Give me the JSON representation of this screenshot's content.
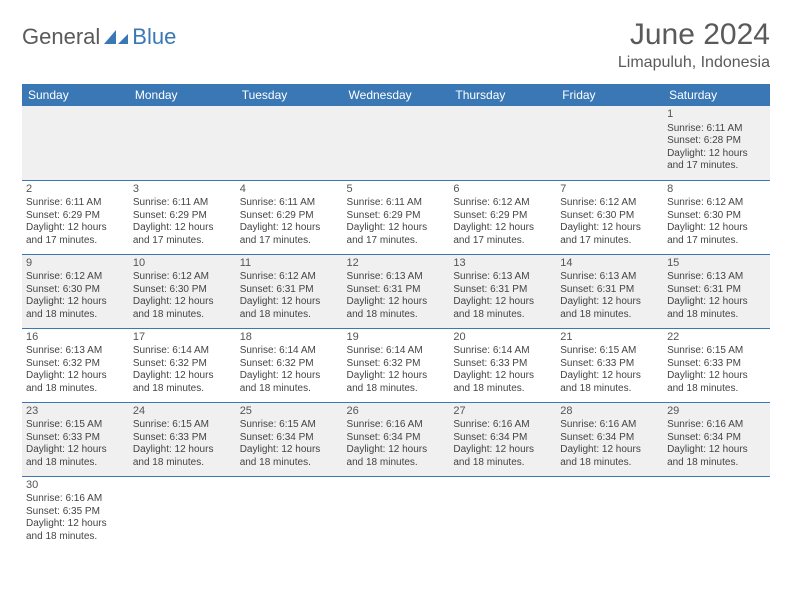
{
  "logo": {
    "word1": "General",
    "word2": "Blue",
    "icon_color": "#3a78b5"
  },
  "title": "June 2024",
  "subtitle": "Limapuluh, Indonesia",
  "colors": {
    "header_bg": "#3a78b5",
    "header_text": "#ffffff",
    "row_alt": "#f0f0f0",
    "border": "#3a78b5",
    "text": "#444444"
  },
  "day_headers": [
    "Sunday",
    "Monday",
    "Tuesday",
    "Wednesday",
    "Thursday",
    "Friday",
    "Saturday"
  ],
  "weeks": [
    [
      null,
      null,
      null,
      null,
      null,
      null,
      {
        "n": "1",
        "sr": "6:11 AM",
        "ss": "6:28 PM",
        "dl": "12 hours and 17 minutes."
      }
    ],
    [
      {
        "n": "2",
        "sr": "6:11 AM",
        "ss": "6:29 PM",
        "dl": "12 hours and 17 minutes."
      },
      {
        "n": "3",
        "sr": "6:11 AM",
        "ss": "6:29 PM",
        "dl": "12 hours and 17 minutes."
      },
      {
        "n": "4",
        "sr": "6:11 AM",
        "ss": "6:29 PM",
        "dl": "12 hours and 17 minutes."
      },
      {
        "n": "5",
        "sr": "6:11 AM",
        "ss": "6:29 PM",
        "dl": "12 hours and 17 minutes."
      },
      {
        "n": "6",
        "sr": "6:12 AM",
        "ss": "6:29 PM",
        "dl": "12 hours and 17 minutes."
      },
      {
        "n": "7",
        "sr": "6:12 AM",
        "ss": "6:30 PM",
        "dl": "12 hours and 17 minutes."
      },
      {
        "n": "8",
        "sr": "6:12 AM",
        "ss": "6:30 PM",
        "dl": "12 hours and 17 minutes."
      }
    ],
    [
      {
        "n": "9",
        "sr": "6:12 AM",
        "ss": "6:30 PM",
        "dl": "12 hours and 18 minutes."
      },
      {
        "n": "10",
        "sr": "6:12 AM",
        "ss": "6:30 PM",
        "dl": "12 hours and 18 minutes."
      },
      {
        "n": "11",
        "sr": "6:12 AM",
        "ss": "6:31 PM",
        "dl": "12 hours and 18 minutes."
      },
      {
        "n": "12",
        "sr": "6:13 AM",
        "ss": "6:31 PM",
        "dl": "12 hours and 18 minutes."
      },
      {
        "n": "13",
        "sr": "6:13 AM",
        "ss": "6:31 PM",
        "dl": "12 hours and 18 minutes."
      },
      {
        "n": "14",
        "sr": "6:13 AM",
        "ss": "6:31 PM",
        "dl": "12 hours and 18 minutes."
      },
      {
        "n": "15",
        "sr": "6:13 AM",
        "ss": "6:31 PM",
        "dl": "12 hours and 18 minutes."
      }
    ],
    [
      {
        "n": "16",
        "sr": "6:13 AM",
        "ss": "6:32 PM",
        "dl": "12 hours and 18 minutes."
      },
      {
        "n": "17",
        "sr": "6:14 AM",
        "ss": "6:32 PM",
        "dl": "12 hours and 18 minutes."
      },
      {
        "n": "18",
        "sr": "6:14 AM",
        "ss": "6:32 PM",
        "dl": "12 hours and 18 minutes."
      },
      {
        "n": "19",
        "sr": "6:14 AM",
        "ss": "6:32 PM",
        "dl": "12 hours and 18 minutes."
      },
      {
        "n": "20",
        "sr": "6:14 AM",
        "ss": "6:33 PM",
        "dl": "12 hours and 18 minutes."
      },
      {
        "n": "21",
        "sr": "6:15 AM",
        "ss": "6:33 PM",
        "dl": "12 hours and 18 minutes."
      },
      {
        "n": "22",
        "sr": "6:15 AM",
        "ss": "6:33 PM",
        "dl": "12 hours and 18 minutes."
      }
    ],
    [
      {
        "n": "23",
        "sr": "6:15 AM",
        "ss": "6:33 PM",
        "dl": "12 hours and 18 minutes."
      },
      {
        "n": "24",
        "sr": "6:15 AM",
        "ss": "6:33 PM",
        "dl": "12 hours and 18 minutes."
      },
      {
        "n": "25",
        "sr": "6:15 AM",
        "ss": "6:34 PM",
        "dl": "12 hours and 18 minutes."
      },
      {
        "n": "26",
        "sr": "6:16 AM",
        "ss": "6:34 PM",
        "dl": "12 hours and 18 minutes."
      },
      {
        "n": "27",
        "sr": "6:16 AM",
        "ss": "6:34 PM",
        "dl": "12 hours and 18 minutes."
      },
      {
        "n": "28",
        "sr": "6:16 AM",
        "ss": "6:34 PM",
        "dl": "12 hours and 18 minutes."
      },
      {
        "n": "29",
        "sr": "6:16 AM",
        "ss": "6:34 PM",
        "dl": "12 hours and 18 minutes."
      }
    ],
    [
      {
        "n": "30",
        "sr": "6:16 AM",
        "ss": "6:35 PM",
        "dl": "12 hours and 18 minutes."
      },
      null,
      null,
      null,
      null,
      null,
      null
    ]
  ],
  "labels": {
    "sunrise": "Sunrise:",
    "sunset": "Sunset:",
    "daylight": "Daylight:"
  }
}
